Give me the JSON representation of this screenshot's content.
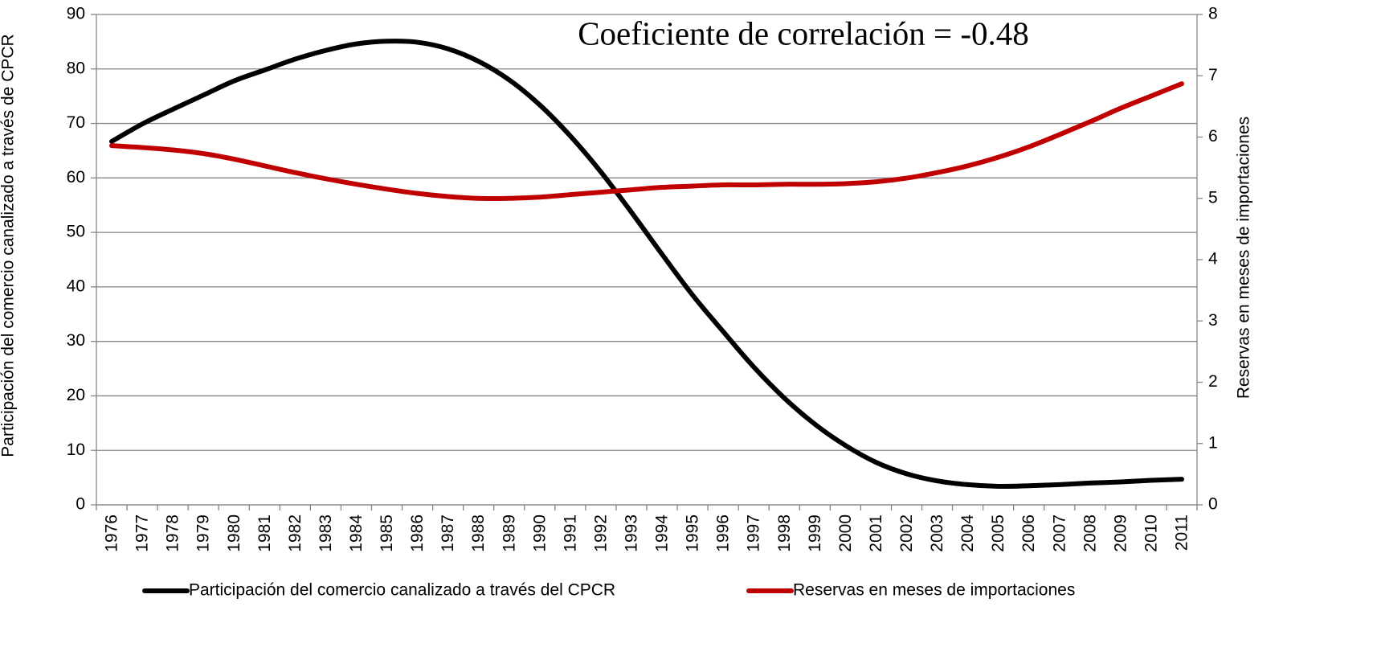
{
  "chart_data": {
    "type": "line",
    "annotation": "Coeficiente de correlación = -0.48",
    "y_label": "Participación del comercio canalizado a través de CPCR",
    "y2_label": "Reservas en meses de importaciones",
    "categories": [
      "1976",
      "1977",
      "1978",
      "1979",
      "1980",
      "1981",
      "1982",
      "1983",
      "1984",
      "1985",
      "1986",
      "1987",
      "1988",
      "1989",
      "1990",
      "1991",
      "1992",
      "1993",
      "1994",
      "1995",
      "1996",
      "1997",
      "1998",
      "1999",
      "2000",
      "2001",
      "2002",
      "2003",
      "2004",
      "2005",
      "2006",
      "2007",
      "2008",
      "2009",
      "2010",
      "2011"
    ],
    "series": [
      {
        "name": "Participación del comercio canalizado a través del CPCR",
        "color": "#000000",
        "values": [
          66.7,
          69.9,
          72.6,
          75.2,
          77.8,
          79.8,
          81.8,
          83.4,
          84.6,
          85.1,
          84.9,
          83.7,
          81.4,
          78.0,
          73.4,
          67.7,
          61.1,
          53.7,
          46.0,
          38.5,
          31.8,
          25.3,
          19.6,
          14.8,
          10.9,
          7.8,
          5.7,
          4.4,
          3.7,
          3.4,
          3.5,
          3.7,
          4.0,
          4.2,
          4.5,
          4.7
        ]
      },
      {
        "name": "Reservas en meses de importaciones",
        "color": "#c00000",
        "axis": "y2",
        "values": [
          5.86,
          5.83,
          5.79,
          5.73,
          5.64,
          5.53,
          5.42,
          5.32,
          5.23,
          5.15,
          5.08,
          5.03,
          5.0,
          5.0,
          5.02,
          5.06,
          5.1,
          5.14,
          5.18,
          5.2,
          5.22,
          5.22,
          5.23,
          5.23,
          5.24,
          5.27,
          5.33,
          5.42,
          5.53,
          5.67,
          5.84,
          6.04,
          6.25,
          6.47,
          6.67,
          6.87
        ]
      }
    ],
    "ylim": [
      0,
      90
    ],
    "yticks": [
      0,
      10,
      20,
      30,
      40,
      50,
      60,
      70,
      80,
      90
    ],
    "y2lim": [
      0,
      8
    ],
    "y2ticks": [
      0,
      1,
      2,
      3,
      4,
      5,
      6,
      7,
      8
    ],
    "grid": true,
    "legend": "bottom"
  }
}
